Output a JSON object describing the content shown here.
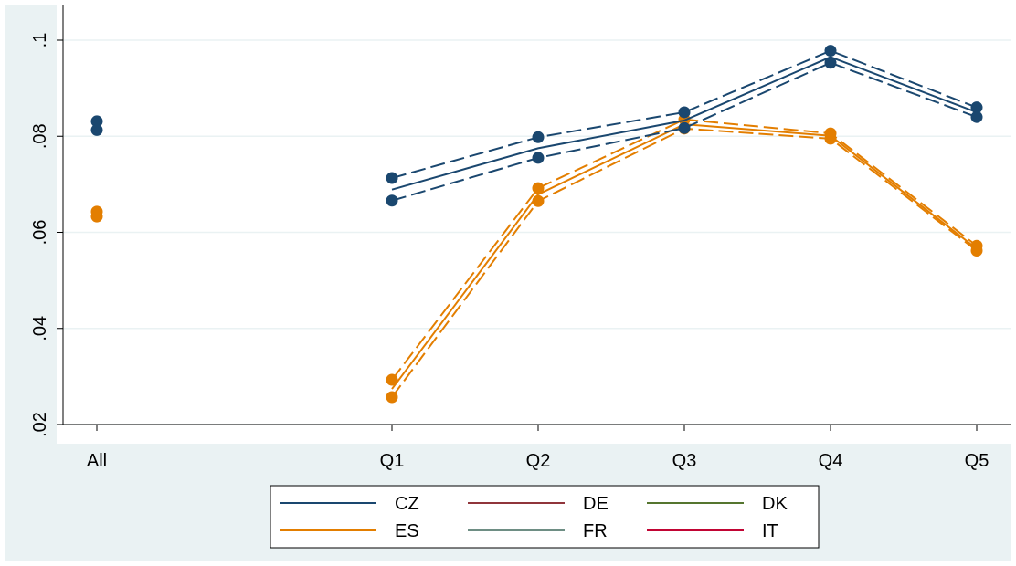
{
  "chart_data": {
    "type": "line",
    "title": "",
    "xlabel": "",
    "ylabel": "",
    "categories": [
      "All",
      "Q1",
      "Q2",
      "Q3",
      "Q4",
      "Q5"
    ],
    "ylim": [
      0.02,
      0.1
    ],
    "yticks": [
      0.02,
      0.04,
      0.06,
      0.08,
      0.1
    ],
    "ytick_labels": [
      ".02",
      ".04",
      ".06",
      ".08",
      ".1"
    ],
    "grid": true,
    "legend_position": "bottom",
    "series": [
      {
        "name": "CZ",
        "color": "#1a476f",
        "estimate": [
          null,
          0.0689,
          0.0775,
          0.0833,
          0.0965,
          0.085
        ],
        "upper": [
          0.0831,
          0.0713,
          0.0798,
          0.085,
          0.0978,
          0.086
        ],
        "lower": [
          0.0813,
          0.0666,
          0.0755,
          0.0817,
          0.0953,
          0.084
        ]
      },
      {
        "name": "ES",
        "color": "#e37e00",
        "estimate": [
          null,
          0.0274,
          0.0679,
          0.0825,
          0.0801,
          0.0566
        ],
        "upper": [
          0.0643,
          0.0293,
          0.0692,
          0.0835,
          0.0806,
          0.0572
        ],
        "lower": [
          0.0633,
          0.0257,
          0.0665,
          0.0816,
          0.0795,
          0.0562
        ]
      },
      {
        "name": "DE",
        "color": "#90353b"
      },
      {
        "name": "DK",
        "color": "#55752f"
      },
      {
        "name": "FR",
        "color": "#6e8e84"
      },
      {
        "name": "IT",
        "color": "#c10534"
      }
    ]
  }
}
